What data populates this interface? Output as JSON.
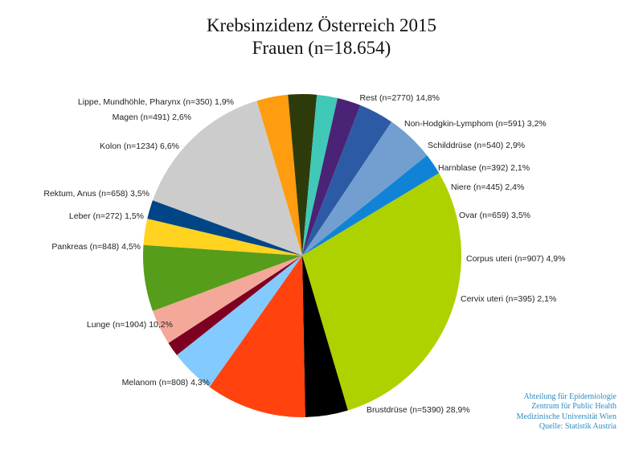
{
  "chart_data": {
    "type": "pie",
    "title": "Krebsinzidenz Österreich 2015",
    "subtitle": "Frauen (n=18.654)",
    "slices": [
      {
        "label": "Rest (n=2770) 14,8%",
        "value": 2770,
        "percent": 14.8,
        "color": "#cccccc"
      },
      {
        "label": "Non-Hodgkin-Lymphom (n=591) 3,2%",
        "value": 591,
        "percent": 3.2,
        "color": "#ff9c0f"
      },
      {
        "label": "Schilddrüse (n=540) 2,9%",
        "value": 540,
        "percent": 2.9,
        "color": "#2d3b0b"
      },
      {
        "label": "Harnblase (n=392) 2,1%",
        "value": 392,
        "percent": 2.1,
        "color": "#3fc9b6"
      },
      {
        "label": "Niere (n=445) 2,4%",
        "value": 445,
        "percent": 2.4,
        "color": "#4a2376"
      },
      {
        "label": "Ovar (n=659) 3,5%",
        "value": 659,
        "percent": 3.5,
        "color": "#2d5aa4"
      },
      {
        "label": "Corpus uteri (n=907) 4,9%",
        "value": 907,
        "percent": 4.9,
        "color": "#729fcf"
      },
      {
        "label": "Cervix uteri (n=395) 2,1%",
        "value": 395,
        "percent": 2.1,
        "color": "#1183d6"
      },
      {
        "label": "Brustdrüse (n=5390) 28,9%",
        "value": 5390,
        "percent": 28.9,
        "color": "#aed100"
      },
      {
        "label": "Melanom (n=808) 4,3%",
        "value": 808,
        "percent": 4.3,
        "color": "#000000"
      },
      {
        "label": "Lunge (n=1904) 10,2%",
        "value": 1904,
        "percent": 10.2,
        "color": "#ff420e"
      },
      {
        "label": "Pankreas (n=848) 4,5%",
        "value": 848,
        "percent": 4.5,
        "color": "#83caff"
      },
      {
        "label": "Leber (n=272) 1,5%",
        "value": 272,
        "percent": 1.5,
        "color": "#7e0021"
      },
      {
        "label": "Rektum, Anus (n=658) 3,5%",
        "value": 658,
        "percent": 3.5,
        "color": "#f4a89a"
      },
      {
        "label": "Kolon (n=1234) 6,6%",
        "value": 1234,
        "percent": 6.6,
        "color": "#579d1c"
      },
      {
        "label": "Magen (n=491) 2,6%",
        "value": 491,
        "percent": 2.6,
        "color": "#ffd320"
      },
      {
        "label": "Lippe, Mundhöhle, Pharynx (n=350) 1,9%",
        "value": 350,
        "percent": 1.9,
        "color": "#004586"
      }
    ]
  },
  "credits": {
    "line1": "Abteilung für Epidemiologie",
    "line2": "Zentrum für Public Health",
    "line3": "Medizinische Universität Wien",
    "line4": "Quelle: Statistik Austria",
    "color": "#2e8bbf"
  }
}
